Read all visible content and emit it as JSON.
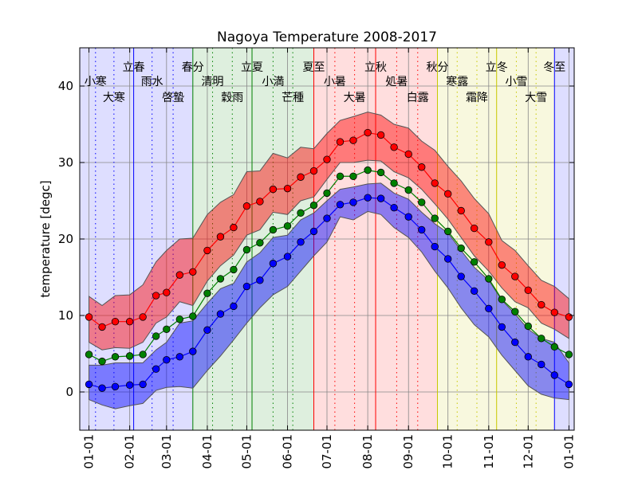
{
  "chart_data": {
    "type": "line",
    "title": "Nagoya Temperature 2008-2017",
    "ylabel": "temperature [degc]",
    "x": [
      0,
      10,
      20,
      31,
      41,
      51,
      59,
      69,
      79,
      90,
      100,
      110,
      120,
      130,
      140,
      151,
      161,
      171,
      181,
      191,
      201,
      212,
      222,
      232,
      243,
      253,
      263,
      273,
      283,
      293,
      304,
      314,
      324,
      334,
      344,
      354,
      365
    ],
    "xlim": [
      -7,
      369
    ],
    "xticks": [
      {
        "value": 0,
        "label": "01-01"
      },
      {
        "value": 31,
        "label": "02-01"
      },
      {
        "value": 59,
        "label": "03-01"
      },
      {
        "value": 90,
        "label": "04-01"
      },
      {
        "value": 120,
        "label": "05-01"
      },
      {
        "value": 151,
        "label": "06-01"
      },
      {
        "value": 181,
        "label": "07-01"
      },
      {
        "value": 212,
        "label": "08-01"
      },
      {
        "value": 243,
        "label": "09-01"
      },
      {
        "value": 273,
        "label": "10-01"
      },
      {
        "value": 304,
        "label": "11-01"
      },
      {
        "value": 334,
        "label": "12-01"
      },
      {
        "value": 365,
        "label": "01-01"
      }
    ],
    "ylim": [
      -5,
      45
    ],
    "yticks": [
      0,
      10,
      20,
      30,
      40
    ],
    "grid": true,
    "seasons": [
      {
        "start": -7,
        "end": 79,
        "color": "#0000ff"
      },
      {
        "start": 79,
        "end": 171,
        "color": "#008000"
      },
      {
        "start": 171,
        "end": 265,
        "color": "#ff0000"
      },
      {
        "start": 265,
        "end": 354,
        "color": "#c8c800"
      },
      {
        "start": 354,
        "end": 369,
        "color": "#0000ff"
      }
    ],
    "solar_terms": [
      {
        "label": "小寒",
        "day": 5
      },
      {
        "label": "大寒",
        "day": 19
      },
      {
        "label": "立春",
        "day": 34
      },
      {
        "label": "雨水",
        "day": 48
      },
      {
        "label": "啓蟄",
        "day": 64
      },
      {
        "label": "春分",
        "day": 79
      },
      {
        "label": "清明",
        "day": 94
      },
      {
        "label": "穀雨",
        "day": 109
      },
      {
        "label": "立夏",
        "day": 124
      },
      {
        "label": "小満",
        "day": 140
      },
      {
        "label": "芒種",
        "day": 155
      },
      {
        "label": "夏至",
        "day": 171
      },
      {
        "label": "小暑",
        "day": 187
      },
      {
        "label": "大暑",
        "day": 202
      },
      {
        "label": "立秋",
        "day": 218
      },
      {
        "label": "処暑",
        "day": 234
      },
      {
        "label": "白露",
        "day": 250
      },
      {
        "label": "秋分",
        "day": 265
      },
      {
        "label": "寒露",
        "day": 280
      },
      {
        "label": "霜降",
        "day": 295
      },
      {
        "label": "立冬",
        "day": 310
      },
      {
        "label": "小雪",
        "day": 325
      },
      {
        "label": "大雪",
        "day": 340
      },
      {
        "label": "冬至",
        "day": 354
      }
    ],
    "bands": [
      {
        "color": "#ff0000",
        "upper": [
          12.5,
          11.3,
          12.6,
          12.7,
          14,
          17,
          18.5,
          20,
          20.1,
          23.2,
          24.8,
          25.8,
          28.8,
          28.9,
          31.2,
          30.6,
          32,
          31.8,
          33.8,
          35.5,
          36,
          36.6,
          36.2,
          35,
          34.5,
          32.8,
          31.6,
          29.5,
          27.6,
          25.3,
          23.3,
          19.8,
          18.5,
          16.5,
          14.6,
          13.8,
          12.2
        ],
        "lower": [
          6.5,
          5.5,
          5.8,
          5.7,
          6.5,
          9,
          9.8,
          11.8,
          11.3,
          14.5,
          16.5,
          17.9,
          20.5,
          21.2,
          23.5,
          23.2,
          25,
          25.5,
          27.8,
          30,
          30,
          30.3,
          30.2,
          28.8,
          28,
          26.5,
          24.6,
          22.6,
          20.2,
          17.8,
          15.8,
          13.6,
          11.8,
          11,
          9,
          8.2,
          7
        ]
      },
      {
        "color": "#0000ff",
        "upper": [
          3.5,
          3.5,
          3.8,
          3.8,
          3.8,
          5.5,
          6.5,
          9,
          9.3,
          11.6,
          13.5,
          14.2,
          17,
          18.2,
          20.2,
          20.5,
          22.5,
          23.4,
          25,
          26.5,
          26.8,
          27.2,
          27.3,
          26,
          25.2,
          23.5,
          22,
          20.8,
          18.5,
          16.3,
          14.6,
          12,
          10.2,
          8.2,
          7,
          6.5,
          3.8
        ],
        "lower": [
          -1,
          -1.7,
          -2.2,
          -1.8,
          -1.5,
          0.2,
          0.6,
          0.7,
          0.5,
          2.8,
          4.7,
          6.8,
          9,
          11,
          12.7,
          13.8,
          15.8,
          17.8,
          19.6,
          22.9,
          22.5,
          23.6,
          23.2,
          21.5,
          20.2,
          18.3,
          15.8,
          13.6,
          11,
          8.8,
          7.2,
          4.8,
          2.8,
          0.8,
          -0.3,
          -0.8,
          -1
        ]
      }
    ],
    "series": [
      {
        "color": "#ff0000",
        "values": [
          9.8,
          8.5,
          9.2,
          9.2,
          9.8,
          12.6,
          13.0,
          15.3,
          15.7,
          18.5,
          20.3,
          21.5,
          24.3,
          24.9,
          26.5,
          26.6,
          28.1,
          28.9,
          30.4,
          32.7,
          32.9,
          33.9,
          33.6,
          32.0,
          31.1,
          29.4,
          27.3,
          25.9,
          23.7,
          21.4,
          19.6,
          16.6,
          15.1,
          13.3,
          11.4,
          10.4,
          9.8
        ]
      },
      {
        "color": "#008000",
        "values": [
          4.9,
          4.0,
          4.6,
          4.7,
          4.9,
          7.3,
          8.2,
          9.5,
          9.9,
          12.9,
          14.8,
          16.0,
          18.6,
          19.5,
          21.2,
          21.7,
          23.4,
          24.4,
          26.0,
          28.2,
          28.2,
          29.0,
          28.7,
          27.3,
          26.4,
          24.8,
          22.7,
          21.0,
          18.8,
          17.0,
          14.8,
          12.1,
          10.5,
          8.6,
          7.0,
          5.9,
          4.9
        ]
      },
      {
        "color": "#0000ff",
        "values": [
          1.0,
          0.5,
          0.7,
          0.9,
          1.0,
          3.0,
          4.2,
          4.6,
          5.3,
          8.1,
          10.2,
          11.2,
          13.8,
          14.6,
          16.8,
          17.7,
          19.6,
          21.0,
          22.7,
          24.5,
          24.8,
          25.4,
          25.3,
          24.1,
          22.9,
          21.2,
          19.0,
          17.4,
          15.1,
          13.2,
          10.9,
          8.5,
          6.5,
          4.6,
          3.6,
          2.2,
          1.0
        ]
      }
    ]
  }
}
